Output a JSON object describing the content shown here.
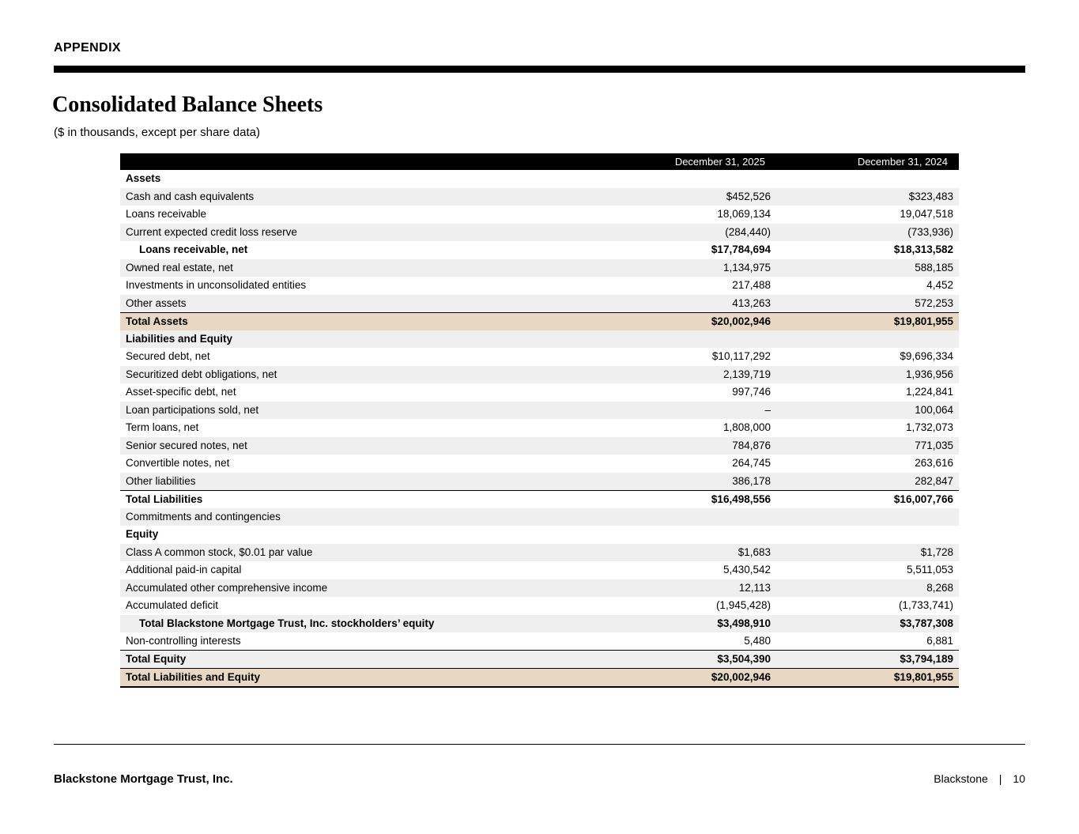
{
  "colors": {
    "header_bar": "#000000",
    "stripe": "#efefef",
    "total_row": "#e8d8c3"
  },
  "header": {
    "appendix": "APPENDIX",
    "title": "Consolidated Balance Sheets",
    "subtitle": "($ in thousands, except per share data)"
  },
  "table": {
    "columns": [
      "",
      "December 31, 2025",
      "December 31, 2024"
    ],
    "rows": [
      {
        "label": "Assets",
        "v2025": "",
        "v2024": "",
        "bold": true,
        "bg": "white"
      },
      {
        "label": "Cash and cash equivalents",
        "v2025": "$452,526",
        "v2024": "$323,483",
        "bg": "gray"
      },
      {
        "label": "Loans receivable",
        "v2025": "18,069,134",
        "v2024": "19,047,518",
        "bg": "white"
      },
      {
        "label": "Current expected credit loss reserve",
        "v2025": "(284,440)",
        "v2024": "(733,936)",
        "bg": "gray"
      },
      {
        "label": "Loans receivable, net",
        "v2025": "$17,784,694",
        "v2024": "$18,313,582",
        "bold": true,
        "indent": true,
        "bg": "white"
      },
      {
        "label": "Owned real estate, net",
        "v2025": "1,134,975",
        "v2024": "588,185",
        "bg": "gray"
      },
      {
        "label": "Investments in unconsolidated entities",
        "v2025": "217,488",
        "v2024": "4,452",
        "bg": "white"
      },
      {
        "label": "Other assets",
        "v2025": "413,263",
        "v2024": "572,253",
        "bg": "gray"
      },
      {
        "label": "Total Assets",
        "v2025": "$20,002,946",
        "v2024": "$19,801,955",
        "bold": true,
        "bg": "tan",
        "border_top": true
      },
      {
        "label": "Liabilities and Equity",
        "v2025": "",
        "v2024": "",
        "bold": true,
        "bg": "gray"
      },
      {
        "label": "Secured debt, net",
        "v2025": "$10,117,292",
        "v2024": "$9,696,334",
        "bg": "white"
      },
      {
        "label": "Securitized debt obligations, net",
        "v2025": "2,139,719",
        "v2024": "1,936,956",
        "bg": "gray"
      },
      {
        "label": "Asset-specific debt, net",
        "v2025": "997,746",
        "v2024": "1,224,841",
        "bg": "white"
      },
      {
        "label": "Loan participations sold, net",
        "v2025": "–",
        "v2024": "100,064",
        "bg": "gray"
      },
      {
        "label": "Term loans, net",
        "v2025": "1,808,000",
        "v2024": "1,732,073",
        "bg": "white"
      },
      {
        "label": "Senior secured notes, net",
        "v2025": "784,876",
        "v2024": "771,035",
        "bg": "gray"
      },
      {
        "label": "Convertible notes, net",
        "v2025": "264,745",
        "v2024": "263,616",
        "bg": "white"
      },
      {
        "label": "Other liabilities",
        "v2025": "386,178",
        "v2024": "282,847",
        "bg": "gray"
      },
      {
        "label": "Total Liabilities",
        "v2025": "$16,498,556",
        "v2024": "$16,007,766",
        "bold": true,
        "bg": "white",
        "border_top": true
      },
      {
        "label": "Commitments and contingencies",
        "v2025": "",
        "v2024": "",
        "bg": "gray"
      },
      {
        "label": "Equity",
        "v2025": "",
        "v2024": "",
        "bold": true,
        "bg": "white"
      },
      {
        "label": "Class A common stock, $0.01 par value",
        "v2025": "$1,683",
        "v2024": "$1,728",
        "bg": "gray"
      },
      {
        "label": "Additional paid-in capital",
        "v2025": "5,430,542",
        "v2024": "5,511,053",
        "bg": "white"
      },
      {
        "label": "Accumulated other comprehensive income",
        "v2025": "12,113",
        "v2024": "8,268",
        "bg": "gray"
      },
      {
        "label": "Accumulated deficit",
        "v2025": "(1,945,428)",
        "v2024": "(1,733,741)",
        "bg": "white"
      },
      {
        "label": "Total Blackstone Mortgage Trust, Inc. stockholders’ equity",
        "v2025": "$3,498,910",
        "v2024": "$3,787,308",
        "bold": true,
        "indent": true,
        "bg": "gray"
      },
      {
        "label": "Non-controlling interests",
        "v2025": "5,480",
        "v2024": "6,881",
        "bg": "white"
      },
      {
        "label": "Total Equity",
        "v2025": "$3,504,390",
        "v2024": "$3,794,189",
        "bold": true,
        "bg": "gray",
        "border_top": true
      },
      {
        "label": "Total Liabilities and Equity",
        "v2025": "$20,002,946",
        "v2024": "$19,801,955",
        "bold": true,
        "bg": "tan",
        "border_top": true,
        "border_bottom": true
      }
    ]
  },
  "footer": {
    "company": "Blackstone Mortgage Trust, Inc.",
    "brand": "Blackstone",
    "divider": "|",
    "page_number": "10"
  }
}
